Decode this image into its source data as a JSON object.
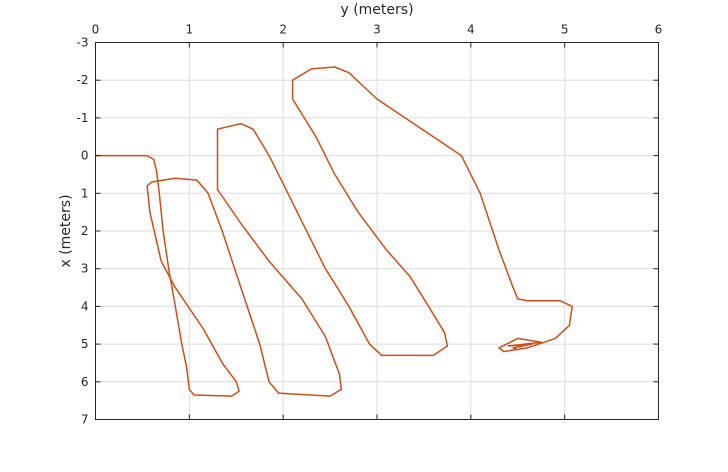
{
  "chart_data": {
    "type": "line",
    "title": "",
    "xlabel": "y (meters)",
    "ylabel": "x (meters)",
    "xlim": [
      0,
      6
    ],
    "ylim": [
      -3,
      7
    ],
    "y_reversed": true,
    "x_axis_position": "top",
    "grid": true,
    "x_ticks": [
      "0",
      "1",
      "2",
      "3",
      "4",
      "5",
      "6"
    ],
    "y_ticks": [
      "-3",
      "-2",
      "-1",
      "0",
      "1",
      "2",
      "3",
      "4",
      "5",
      "6",
      "7"
    ],
    "series": [
      {
        "color": "#c8501e",
        "points": [
          [
            0.0,
            0.0
          ],
          [
            0.55,
            0.0
          ],
          [
            0.62,
            0.1
          ],
          [
            0.65,
            0.4
          ],
          [
            0.68,
            1.0
          ],
          [
            0.72,
            2.0
          ],
          [
            0.78,
            3.0
          ],
          [
            0.85,
            4.0
          ],
          [
            0.92,
            5.0
          ],
          [
            0.97,
            5.6
          ],
          [
            1.0,
            6.2
          ],
          [
            1.05,
            6.35
          ],
          [
            1.45,
            6.38
          ],
          [
            1.53,
            6.25
          ],
          [
            1.5,
            6.0
          ],
          [
            1.35,
            5.5
          ],
          [
            1.15,
            4.6
          ],
          [
            0.85,
            3.5
          ],
          [
            0.7,
            2.8
          ],
          [
            0.58,
            1.5
          ],
          [
            0.55,
            0.8
          ],
          [
            0.6,
            0.7
          ],
          [
            0.85,
            0.6
          ],
          [
            1.08,
            0.65
          ],
          [
            1.2,
            1.0
          ],
          [
            1.35,
            2.0
          ],
          [
            1.55,
            3.5
          ],
          [
            1.75,
            5.0
          ],
          [
            1.85,
            6.0
          ],
          [
            1.95,
            6.3
          ],
          [
            2.5,
            6.38
          ],
          [
            2.62,
            6.2
          ],
          [
            2.6,
            5.8
          ],
          [
            2.45,
            4.8
          ],
          [
            2.2,
            3.8
          ],
          [
            1.85,
            2.8
          ],
          [
            1.55,
            1.8
          ],
          [
            1.3,
            0.9
          ],
          [
            1.3,
            -0.7
          ],
          [
            1.55,
            -0.85
          ],
          [
            1.68,
            -0.7
          ],
          [
            1.85,
            0.0
          ],
          [
            2.05,
            1.0
          ],
          [
            2.25,
            2.0
          ],
          [
            2.45,
            3.0
          ],
          [
            2.7,
            4.0
          ],
          [
            2.92,
            5.0
          ],
          [
            3.05,
            5.3
          ],
          [
            3.6,
            5.3
          ],
          [
            3.75,
            5.05
          ],
          [
            3.72,
            4.7
          ],
          [
            3.55,
            4.0
          ],
          [
            3.35,
            3.2
          ],
          [
            3.1,
            2.5
          ],
          [
            2.8,
            1.5
          ],
          [
            2.55,
            0.5
          ],
          [
            2.35,
            -0.5
          ],
          [
            2.1,
            -1.5
          ],
          [
            2.1,
            -2.0
          ],
          [
            2.3,
            -2.3
          ],
          [
            2.55,
            -2.35
          ],
          [
            2.7,
            -2.2
          ],
          [
            3.0,
            -1.5
          ],
          [
            3.3,
            -1.0
          ],
          [
            3.6,
            -0.5
          ],
          [
            3.9,
            0.0
          ],
          [
            4.1,
            1.0
          ],
          [
            4.3,
            2.5
          ],
          [
            4.45,
            3.5
          ],
          [
            4.5,
            3.8
          ],
          [
            4.6,
            3.85
          ],
          [
            4.95,
            3.85
          ],
          [
            5.08,
            4.0
          ],
          [
            5.05,
            4.5
          ],
          [
            4.9,
            4.85
          ],
          [
            4.6,
            5.1
          ],
          [
            4.35,
            5.2
          ],
          [
            4.3,
            5.1
          ],
          [
            4.5,
            4.85
          ],
          [
            4.75,
            4.95
          ],
          [
            4.4,
            5.05
          ],
          [
            4.65,
            5.0
          ],
          [
            4.45,
            5.1
          ],
          [
            4.5,
            5.15
          ]
        ]
      }
    ]
  }
}
